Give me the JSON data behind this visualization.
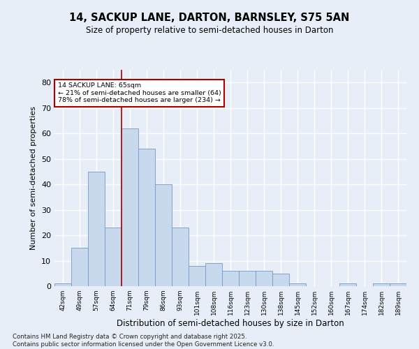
{
  "title": "14, SACKUP LANE, DARTON, BARNSLEY, S75 5AN",
  "subtitle": "Size of property relative to semi-detached houses in Darton",
  "xlabel": "Distribution of semi-detached houses by size in Darton",
  "ylabel": "Number of semi-detached properties",
  "categories": [
    "42sqm",
    "49sqm",
    "57sqm",
    "64sqm",
    "71sqm",
    "79sqm",
    "86sqm",
    "93sqm",
    "101sqm",
    "108sqm",
    "116sqm",
    "123sqm",
    "130sqm",
    "138sqm",
    "145sqm",
    "152sqm",
    "160sqm",
    "167sqm",
    "174sqm",
    "182sqm",
    "189sqm"
  ],
  "values": [
    1,
    15,
    45,
    23,
    62,
    54,
    40,
    23,
    8,
    9,
    6,
    6,
    6,
    5,
    1,
    0,
    0,
    1,
    0,
    1,
    1
  ],
  "bar_color": "#c9d9ed",
  "bar_edge_color": "#7399c6",
  "background_color": "#e8eef7",
  "grid_color": "#ffffff",
  "annotation_text_title": "14 SACKUP LANE: 65sqm",
  "annotation_text_smaller": "← 21% of semi-detached houses are smaller (64)",
  "annotation_text_larger": "78% of semi-detached houses are larger (234) →",
  "annotation_box_color": "#ffffff",
  "annotation_box_edge": "#aa0000",
  "vline_color": "#aa0000",
  "vline_x": 3.5,
  "ylim": [
    0,
    85
  ],
  "yticks": [
    0,
    10,
    20,
    30,
    40,
    50,
    60,
    70,
    80
  ],
  "footnote1": "Contains HM Land Registry data © Crown copyright and database right 2025.",
  "footnote2": "Contains public sector information licensed under the Open Government Licence v3.0."
}
